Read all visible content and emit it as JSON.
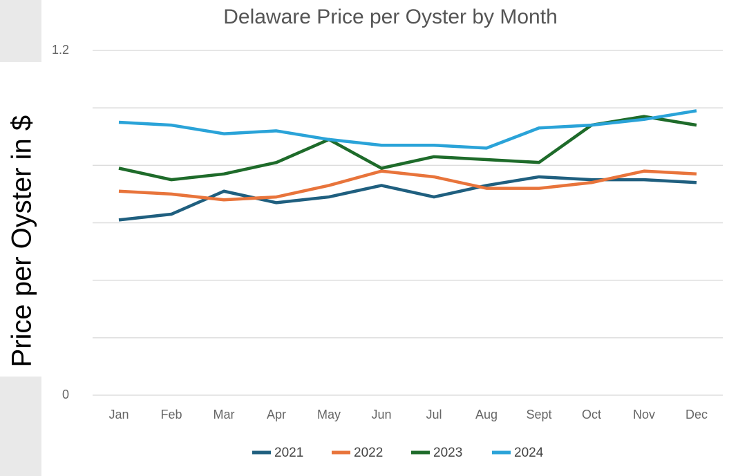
{
  "chart_data": {
    "type": "line",
    "title": "Delaware Price per Oyster by Month",
    "y_label": "Price per Oyster in $",
    "categories": [
      "Jan",
      "Feb",
      "Mar",
      "Apr",
      "May",
      "Jun",
      "Jul",
      "Aug",
      "Sept",
      "Oct",
      "Nov",
      "Dec"
    ],
    "series": [
      {
        "name": "2021",
        "color": "#1f5f7f",
        "values": [
          0.61,
          0.63,
          0.71,
          0.67,
          0.69,
          0.73,
          0.69,
          0.73,
          0.76,
          0.75,
          0.75,
          0.74
        ]
      },
      {
        "name": "2022",
        "color": "#e8743b",
        "values": [
          0.71,
          0.7,
          0.68,
          0.69,
          0.73,
          0.78,
          0.76,
          0.72,
          0.72,
          0.74,
          0.78,
          0.77
        ]
      },
      {
        "name": "2023",
        "color": "#1e6b2a",
        "values": [
          0.79,
          0.75,
          0.77,
          0.81,
          0.89,
          0.79,
          0.83,
          0.82,
          0.81,
          0.94,
          0.97,
          0.94
        ]
      },
      {
        "name": "2024",
        "color": "#2aa3d8",
        "values": [
          0.95,
          0.94,
          0.91,
          0.92,
          0.89,
          0.87,
          0.87,
          0.86,
          0.93,
          0.94,
          0.96,
          0.99
        ]
      }
    ],
    "ylim": [
      0,
      1.2
    ],
    "yticks": [
      0,
      0.2,
      0.4,
      0.6,
      0.8,
      1,
      1.2
    ],
    "grid": true,
    "legend": "bottom"
  }
}
